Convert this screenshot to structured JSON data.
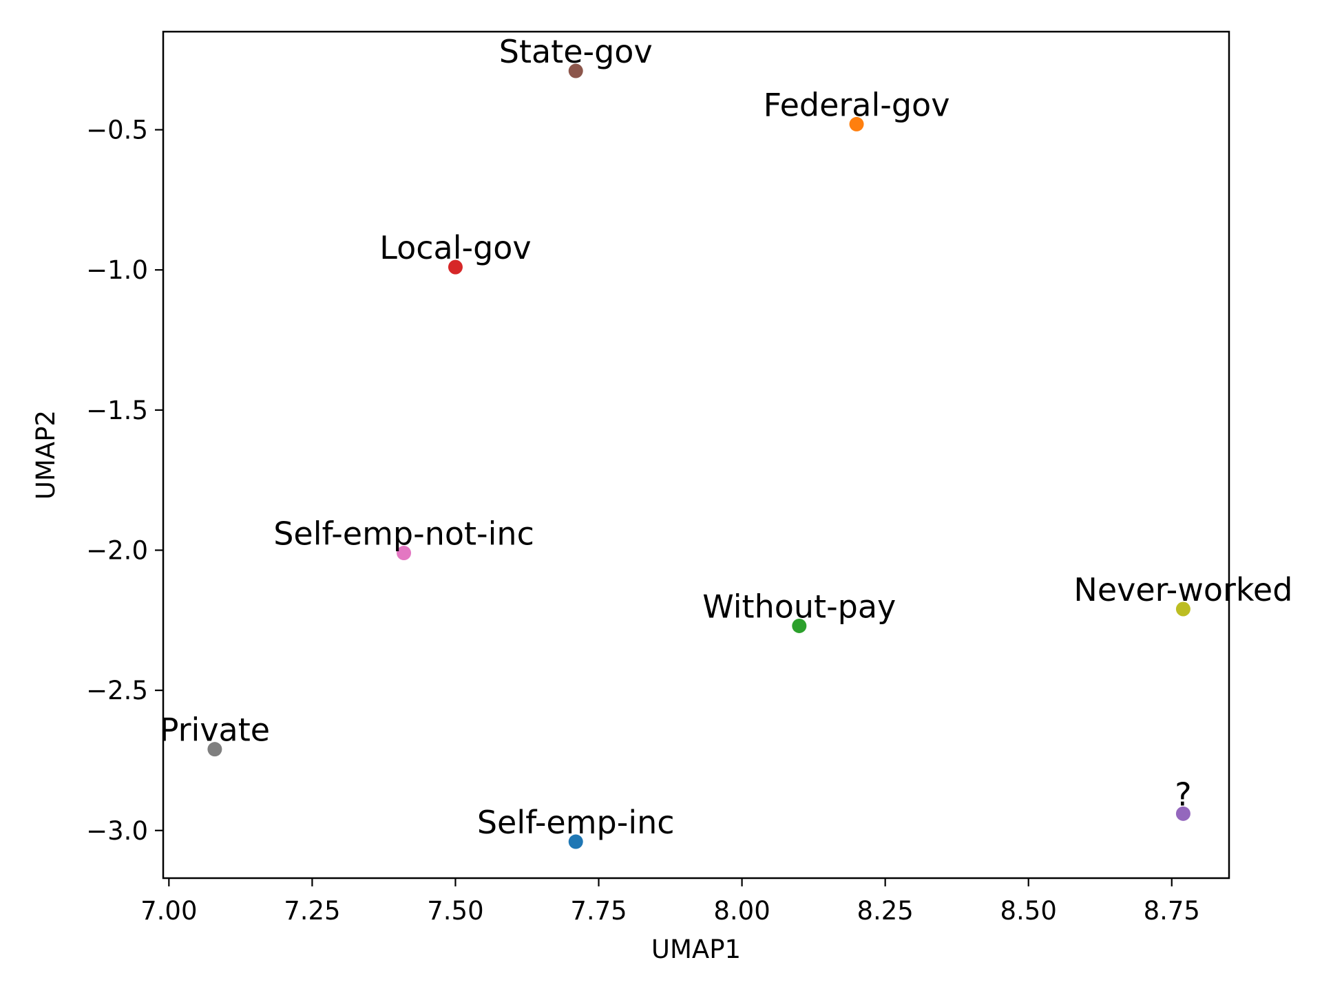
{
  "chart_data": {
    "type": "scatter",
    "title": "",
    "xlabel": "UMAP1",
    "ylabel": "UMAP2",
    "xlim": [
      6.99,
      8.85
    ],
    "ylim": [
      -3.17,
      -0.15
    ],
    "grid": false,
    "legend": "none",
    "x_ticks": [
      {
        "value": 7.0,
        "label": "7.00"
      },
      {
        "value": 7.25,
        "label": "7.25"
      },
      {
        "value": 7.5,
        "label": "7.50"
      },
      {
        "value": 7.75,
        "label": "7.75"
      },
      {
        "value": 8.0,
        "label": "8.00"
      },
      {
        "value": 8.25,
        "label": "8.25"
      },
      {
        "value": 8.5,
        "label": "8.50"
      },
      {
        "value": 8.75,
        "label": "8.75"
      }
    ],
    "y_ticks": [
      {
        "value": -0.5,
        "label": "−0.5"
      },
      {
        "value": -1.0,
        "label": "−1.0"
      },
      {
        "value": -1.5,
        "label": "−1.5"
      },
      {
        "value": -2.0,
        "label": "−2.0"
      },
      {
        "value": -2.5,
        "label": "−2.5"
      },
      {
        "value": -3.0,
        "label": "−3.0"
      }
    ],
    "points": [
      {
        "label": "State-gov",
        "x": 7.71,
        "y": -0.29,
        "color": "#8c564b"
      },
      {
        "label": "Federal-gov",
        "x": 8.2,
        "y": -0.48,
        "color": "#ff7f0e"
      },
      {
        "label": "Local-gov",
        "x": 7.5,
        "y": -0.99,
        "color": "#d62728"
      },
      {
        "label": "Self-emp-not-inc",
        "x": 7.41,
        "y": -2.01,
        "color": "#e377c2"
      },
      {
        "label": "Without-pay",
        "x": 8.1,
        "y": -2.27,
        "color": "#2ca02c"
      },
      {
        "label": "Never-worked",
        "x": 8.77,
        "y": -2.21,
        "color": "#bcbd22"
      },
      {
        "label": "Private",
        "x": 7.08,
        "y": -2.71,
        "color": "#7f7f7f"
      },
      {
        "label": "?",
        "x": 8.77,
        "y": -2.94,
        "color": "#9467bd"
      },
      {
        "label": "Self-emp-inc",
        "x": 7.71,
        "y": -3.04,
        "color": "#1f77b4"
      }
    ]
  }
}
